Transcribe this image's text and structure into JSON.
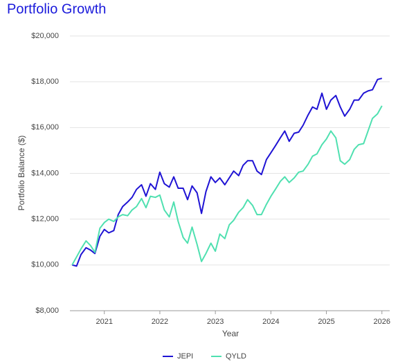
{
  "chart_data": {
    "type": "line",
    "title": "Portfolio Growth",
    "x_label": "Year",
    "y_label": "Portfolio Balance ($)",
    "x": [
      2020.42,
      2020.5,
      2020.58,
      2020.67,
      2020.75,
      2020.83,
      2020.92,
      2021,
      2021.08,
      2021.17,
      2021.25,
      2021.33,
      2021.42,
      2021.5,
      2021.58,
      2021.67,
      2021.75,
      2021.83,
      2021.92,
      2022,
      2022.08,
      2022.17,
      2022.25,
      2022.33,
      2022.42,
      2022.5,
      2022.58,
      2022.67,
      2022.75,
      2022.83,
      2022.92,
      2023,
      2023.08,
      2023.17,
      2023.25,
      2023.33,
      2023.42,
      2023.5,
      2023.58,
      2023.67,
      2023.75,
      2023.83,
      2023.92,
      2024,
      2024.08,
      2024.17,
      2024.25,
      2024.33,
      2024.42,
      2024.5,
      2024.58,
      2024.67,
      2024.75,
      2024.83,
      2024.92,
      2025,
      2025.08,
      2025.17,
      2025.25,
      2025.33,
      2025.42,
      2025.5,
      2025.58,
      2025.67,
      2025.75,
      2025.83,
      2025.92,
      2026
    ],
    "series": [
      {
        "name": "JEPI",
        "color": "#1f13d4",
        "values": [
          10000,
          9950,
          10450,
          10750,
          10650,
          10500,
          11250,
          11550,
          11400,
          11500,
          12200,
          12550,
          12750,
          12950,
          13300,
          13500,
          13000,
          13550,
          13300,
          14050,
          13550,
          13400,
          13850,
          13350,
          13350,
          12850,
          13450,
          13150,
          12250,
          13200,
          13850,
          13600,
          13800,
          13500,
          13800,
          14100,
          13900,
          14350,
          14550,
          14550,
          14100,
          13950,
          14600,
          14900,
          15200,
          15550,
          15850,
          15400,
          15750,
          15800,
          16100,
          16550,
          16900,
          16800,
          17500,
          16800,
          17200,
          17400,
          16900,
          16500,
          16800,
          17200,
          17200,
          17500,
          17600,
          17650,
          18100,
          18150
        ]
      },
      {
        "name": "QYLD",
        "color": "#4fe0b0",
        "values": [
          10000,
          10350,
          10700,
          11050,
          10850,
          10550,
          11600,
          11850,
          12000,
          11900,
          12100,
          12200,
          12150,
          12400,
          12550,
          12900,
          12500,
          13000,
          12950,
          13050,
          12400,
          12100,
          12750,
          11900,
          11200,
          10950,
          11650,
          10900,
          10150,
          10500,
          10950,
          10600,
          11350,
          11150,
          11750,
          11950,
          12300,
          12500,
          12850,
          12600,
          12200,
          12200,
          12650,
          13000,
          13300,
          13650,
          13850,
          13600,
          13800,
          14050,
          14100,
          14400,
          14750,
          14850,
          15250,
          15500,
          15850,
          15550,
          14550,
          14400,
          14600,
          15050,
          15250,
          15300,
          15850,
          16400,
          16600,
          16950
        ]
      }
    ],
    "xlim": [
      2020.38,
      2026.14
    ],
    "xticks": [
      2021,
      2022,
      2023,
      2024,
      2025,
      2026
    ],
    "ylim": [
      8000,
      20000
    ],
    "yticks": [
      {
        "value": 8000,
        "label": "$8,000"
      },
      {
        "value": 10000,
        "label": "$10,000"
      },
      {
        "value": 12000,
        "label": "$12,000"
      },
      {
        "value": 14000,
        "label": "$14,000"
      },
      {
        "value": 16000,
        "label": "$16,000"
      },
      {
        "value": 18000,
        "label": "$18,000"
      },
      {
        "value": 20000,
        "label": "$20,000"
      }
    ],
    "grid": true,
    "legend": "bottom"
  }
}
